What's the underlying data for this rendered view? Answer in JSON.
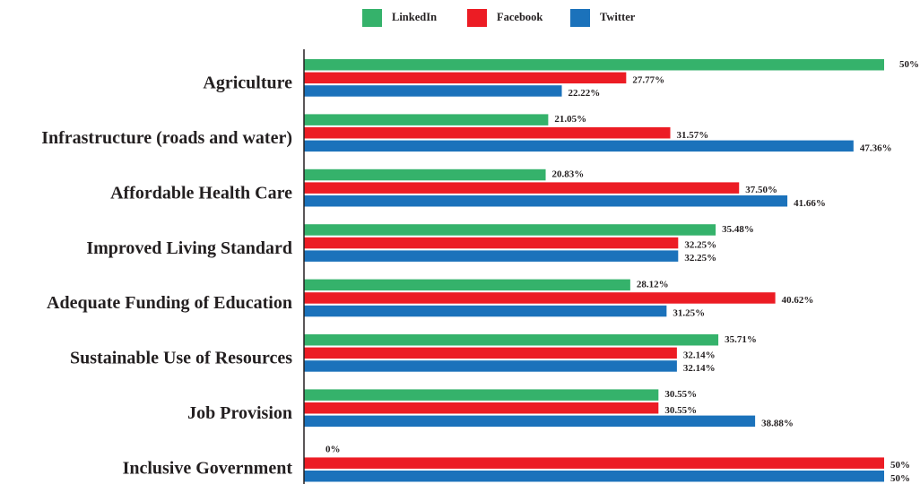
{
  "chart_data": {
    "type": "hbar",
    "categories": [
      "Agriculture",
      "Infrastructure (roads and water)",
      "Affordable Health Care",
      "Improved Living Standard",
      "Adequate Funding of Education",
      "Sustainable Use of Resources",
      "Job Provision",
      "Inclusive Government"
    ],
    "series": [
      {
        "name": "LinkedIn",
        "color": "#35b26b",
        "values": [
          50,
          21.05,
          20.83,
          35.48,
          28.12,
          35.71,
          30.55,
          0
        ],
        "value_labels": [
          "50%",
          "21.05%",
          "20.83%",
          "35.48%",
          "28.12%",
          "35.71%",
          "30.55%",
          "0%"
        ]
      },
      {
        "name": "Facebook",
        "color": "#ec1c24",
        "values": [
          27.77,
          31.57,
          37.5,
          32.25,
          40.62,
          32.14,
          30.55,
          50
        ],
        "value_labels": [
          "27.77%",
          "31.57%",
          "37.50%",
          "32.25%",
          "40.62%",
          "32.14%",
          "30.55%",
          "50%"
        ]
      },
      {
        "name": "Twitter",
        "color": "#1b72bb",
        "values": [
          22.22,
          47.36,
          41.66,
          32.25,
          31.25,
          32.14,
          38.88,
          50
        ],
        "value_labels": [
          "22.22%",
          "47.36%",
          "41.66%",
          "32.25%",
          "31.25%",
          "32.14%",
          "38.88%",
          "50%"
        ]
      }
    ],
    "legend": "top"
  }
}
